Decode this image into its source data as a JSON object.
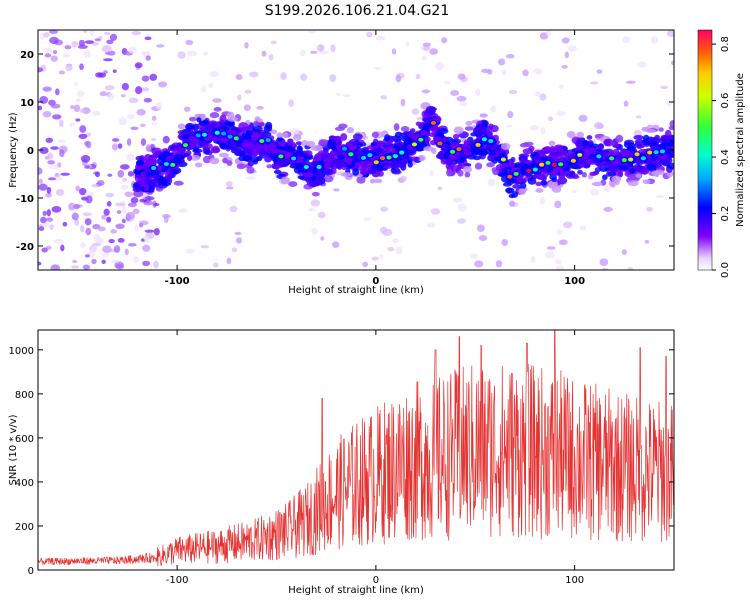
{
  "title": "S199.2026.106.21.04.G21",
  "chart_data": [
    {
      "type": "heatmap",
      "xlabel": "Height of straight line (km)",
      "ylabel": "Frequency (Hz)",
      "xlim": [
        -170,
        150
      ],
      "ylim": [
        -25,
        25
      ],
      "xticks": [
        -100,
        0,
        100
      ],
      "yticks": [
        -20,
        -10,
        0,
        10,
        20
      ],
      "colorbar": {
        "label": "Normalized spectral amplitude",
        "range": [
          0,
          0.85
        ],
        "ticks": [
          "0.0",
          "0.2",
          "0.4",
          "0.6",
          "0.8"
        ]
      },
      "ridge": [
        {
          "x": -170,
          "y": -4
        },
        {
          "x": -140,
          "y": -4
        },
        {
          "x": -120,
          "y": -5
        },
        {
          "x": -110,
          "y": -4
        },
        {
          "x": -100,
          "y": -2
        },
        {
          "x": -95,
          "y": 2
        },
        {
          "x": -85,
          "y": 3
        },
        {
          "x": -75,
          "y": 3
        },
        {
          "x": -65,
          "y": 1
        },
        {
          "x": -55,
          "y": 2
        },
        {
          "x": -50,
          "y": -2
        },
        {
          "x": -45,
          "y": -1
        },
        {
          "x": -35,
          "y": -3
        },
        {
          "x": -30,
          "y": -5
        },
        {
          "x": -25,
          "y": -2
        },
        {
          "x": -20,
          "y": 0
        },
        {
          "x": -10,
          "y": -1
        },
        {
          "x": 0,
          "y": -2
        },
        {
          "x": 10,
          "y": -1
        },
        {
          "x": 20,
          "y": 1
        },
        {
          "x": 25,
          "y": 4
        },
        {
          "x": 28,
          "y": 7
        },
        {
          "x": 32,
          "y": 2
        },
        {
          "x": 38,
          "y": -1
        },
        {
          "x": 45,
          "y": 0
        },
        {
          "x": 55,
          "y": 2
        },
        {
          "x": 62,
          "y": 0
        },
        {
          "x": 68,
          "y": -6
        },
        {
          "x": 75,
          "y": -4
        },
        {
          "x": 85,
          "y": -3
        },
        {
          "x": 95,
          "y": -3
        },
        {
          "x": 105,
          "y": -1
        },
        {
          "x": 115,
          "y": -2
        },
        {
          "x": 125,
          "y": -2
        },
        {
          "x": 135,
          "y": -1
        },
        {
          "x": 150,
          "y": 0
        }
      ]
    },
    {
      "type": "line",
      "xlabel": "Height of straight line (km)",
      "ylabel": "SNR (10 * v/v)",
      "xlim": [
        -170,
        150
      ],
      "ylim": [
        0,
        1090
      ],
      "xticks": [
        -100,
        0,
        100
      ],
      "yticks": [
        0,
        200,
        400,
        600,
        800,
        1000
      ],
      "color": "#e53333",
      "envelope": [
        {
          "x": -170,
          "y": 40
        },
        {
          "x": -130,
          "y": 45
        },
        {
          "x": -110,
          "y": 60
        },
        {
          "x": -100,
          "y": 90
        },
        {
          "x": -80,
          "y": 110
        },
        {
          "x": -60,
          "y": 140
        },
        {
          "x": -45,
          "y": 180
        },
        {
          "x": -35,
          "y": 230
        },
        {
          "x": -25,
          "y": 320
        },
        {
          "x": -15,
          "y": 380
        },
        {
          "x": 0,
          "y": 440
        },
        {
          "x": 15,
          "y": 500
        },
        {
          "x": 30,
          "y": 520
        },
        {
          "x": 50,
          "y": 560
        },
        {
          "x": 70,
          "y": 560
        },
        {
          "x": 90,
          "y": 540
        },
        {
          "x": 110,
          "y": 500
        },
        {
          "x": 130,
          "y": 470
        },
        {
          "x": 150,
          "y": 450
        }
      ],
      "peaks": [
        {
          "x": -27,
          "y": 780
        },
        {
          "x": 30,
          "y": 1000
        },
        {
          "x": 42,
          "y": 1060
        },
        {
          "x": 53,
          "y": 1020
        },
        {
          "x": 76,
          "y": 1030
        },
        {
          "x": 90,
          "y": 1090
        },
        {
          "x": 133,
          "y": 1010
        },
        {
          "x": 146,
          "y": 970
        }
      ]
    }
  ]
}
